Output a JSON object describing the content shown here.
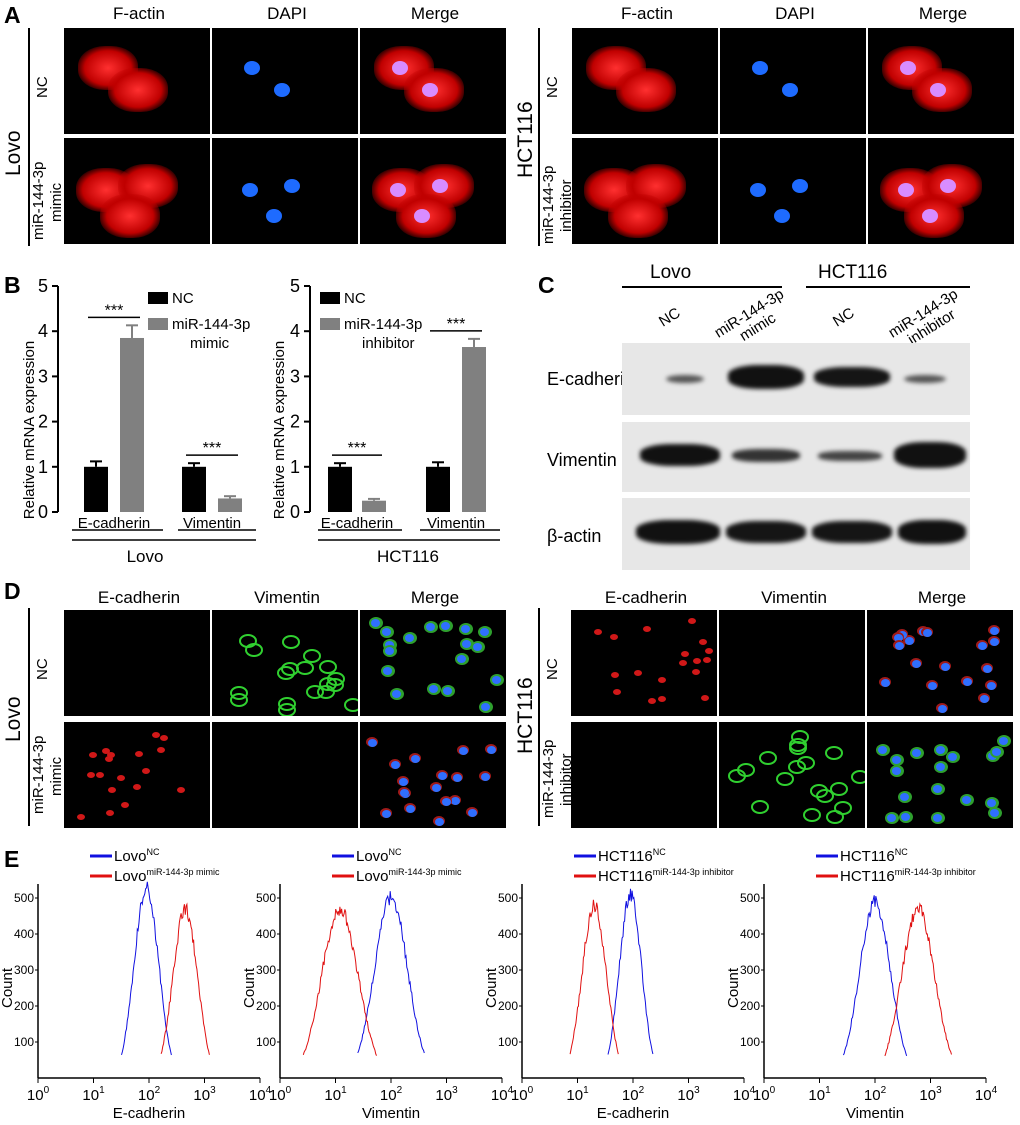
{
  "panels": {
    "A": "A",
    "B": "B",
    "C": "C",
    "D": "D",
    "E": "E"
  },
  "panelA": {
    "headers": [
      "F-actin",
      "DAPI",
      "Merge"
    ],
    "left": {
      "cell": "Lovo",
      "rows": [
        "NC",
        "miR-144-3p",
        "mimic"
      ]
    },
    "right": {
      "cell": "HCT116",
      "rows": [
        "NC",
        "miR-144-3p",
        "inhibitor"
      ]
    }
  },
  "panelB": {
    "ylabel": "Relative mRNA expression",
    "sig": "***",
    "legend_nc": "NC",
    "legend_mir": "miR-144-3p",
    "left": {
      "xlabel": "Lovo",
      "legend_sub": "mimic"
    },
    "right": {
      "xlabel": "HCT116",
      "legend_sub": "inhibitor"
    }
  },
  "panelC": {
    "groups": [
      "Lovo",
      "HCT116"
    ],
    "lanes": [
      "NC",
      "miR-144-3p mimic",
      "NC",
      "miR-144-3p inhibitor"
    ],
    "lane_line1": [
      "NC",
      "miR-144-3p",
      "NC",
      "miR-144-3p"
    ],
    "lane_line2": [
      "",
      "mimic",
      "",
      "inhibitor"
    ],
    "proteins": [
      "E-cadherin",
      "Vimentin",
      "β-actin"
    ]
  },
  "panelD": {
    "headers": [
      "E-cadherin",
      "Vimentin",
      "Merge"
    ],
    "left": {
      "cell": "Lovo",
      "rows": [
        "NC",
        "miR-144-3p",
        "mimic"
      ]
    },
    "right": {
      "cell": "HCT116",
      "rows": [
        "NC",
        "miR-144-3p",
        "inhibitor"
      ]
    }
  },
  "panelE": {
    "ylabel": "Count",
    "x_ticks": [
      "10",
      "10",
      "10",
      "10",
      "10"
    ],
    "x_tick_exps": [
      "0",
      "1",
      "2",
      "3",
      "4"
    ],
    "y_ticks": [
      "100",
      "200",
      "300",
      "400",
      "500"
    ],
    "plots": [
      {
        "xlabel": "E-cadherin",
        "nc_base": "Lovo",
        "nc_sup": "NC",
        "tr_base": "Lovo",
        "tr_sup": "miR-144-3p mimic"
      },
      {
        "xlabel": "Vimentin",
        "nc_base": "Lovo",
        "nc_sup": "NC",
        "tr_base": "Lovo",
        "tr_sup": "miR-144-3p mimic"
      },
      {
        "xlabel": "E-cadherin",
        "nc_base": "HCT116",
        "nc_sup": "NC",
        "tr_base": "HCT116",
        "tr_sup": "miR-144-3p inhibitor"
      },
      {
        "xlabel": "Vimentin",
        "nc_base": "HCT116",
        "nc_sup": "NC",
        "tr_base": "HCT116",
        "tr_sup": "miR-144-3p inhibitor"
      }
    ]
  },
  "colors": {
    "nc": "#1010e0",
    "treated": "#e01010",
    "bar_nc": "#000000",
    "bar_mir": "#808080"
  },
  "chart_data": [
    {
      "type": "bar",
      "panel": "B-left",
      "ylabel": "Relative mRNA expression",
      "categories": [
        "E-cadherin",
        "Vimentin"
      ],
      "xlabel": "Lovo",
      "ylim": [
        0,
        5
      ],
      "yticks": [
        0,
        1,
        2,
        3,
        4,
        5
      ],
      "series": [
        {
          "name": "NC",
          "values": [
            1.0,
            1.0
          ],
          "errors": [
            0.12,
            0.08
          ]
        },
        {
          "name": "miR-144-3p mimic",
          "values": [
            3.85,
            0.3
          ],
          "errors": [
            0.28,
            0.05
          ]
        }
      ],
      "annotations": [
        "***",
        "***"
      ]
    },
    {
      "type": "bar",
      "panel": "B-right",
      "ylabel": "Relative mRNA expression",
      "categories": [
        "E-cadherin",
        "Vimentin"
      ],
      "xlabel": "HCT116",
      "ylim": [
        0,
        5
      ],
      "yticks": [
        0,
        1,
        2,
        3,
        4,
        5
      ],
      "series": [
        {
          "name": "NC",
          "values": [
            1.0,
            1.0
          ],
          "errors": [
            0.08,
            0.1
          ]
        },
        {
          "name": "miR-144-3p inhibitor",
          "values": [
            0.25,
            3.65
          ],
          "errors": [
            0.04,
            0.18
          ]
        }
      ],
      "annotations": [
        "***",
        "***"
      ]
    },
    {
      "type": "line",
      "panel": "E-1",
      "xlabel": "E-cadherin",
      "ylabel": "Count",
      "xscale": "log",
      "xlim": [
        1,
        10000
      ],
      "ylim": [
        0,
        550
      ],
      "series": [
        {
          "name": "Lovo NC",
          "peak_x": 90,
          "peak_y": 530,
          "width": 0.22
        },
        {
          "name": "Lovo miR-144-3p mimic",
          "peak_x": 450,
          "peak_y": 470,
          "width": 0.22
        }
      ]
    },
    {
      "type": "line",
      "panel": "E-2",
      "xlabel": "Vimentin",
      "ylabel": "Count",
      "xscale": "log",
      "xlim": [
        1,
        10000
      ],
      "ylim": [
        0,
        550
      ],
      "series": [
        {
          "name": "Lovo NC",
          "peak_x": 100,
          "peak_y": 500,
          "width": 0.3
        },
        {
          "name": "Lovo miR-144-3p mimic",
          "peak_x": 12,
          "peak_y": 470,
          "width": 0.33
        }
      ]
    },
    {
      "type": "line",
      "panel": "E-3",
      "xlabel": "E-cadherin",
      "ylabel": "Count",
      "xscale": "log",
      "xlim": [
        1,
        10000
      ],
      "ylim": [
        0,
        550
      ],
      "series": [
        {
          "name": "HCT116 NC",
          "peak_x": 90,
          "peak_y": 510,
          "width": 0.2
        },
        {
          "name": "HCT116 miR-144-3p inhibitor",
          "peak_x": 20,
          "peak_y": 480,
          "width": 0.22
        }
      ]
    },
    {
      "type": "line",
      "panel": "E-4",
      "xlabel": "Vimentin",
      "ylabel": "Count",
      "xscale": "log",
      "xlim": [
        1,
        10000
      ],
      "ylim": [
        0,
        550
      ],
      "series": [
        {
          "name": "HCT116 NC",
          "peak_x": 100,
          "peak_y": 490,
          "width": 0.28
        },
        {
          "name": "HCT116 miR-144-3p inhibitor",
          "peak_x": 600,
          "peak_y": 470,
          "width": 0.3
        }
      ]
    }
  ]
}
